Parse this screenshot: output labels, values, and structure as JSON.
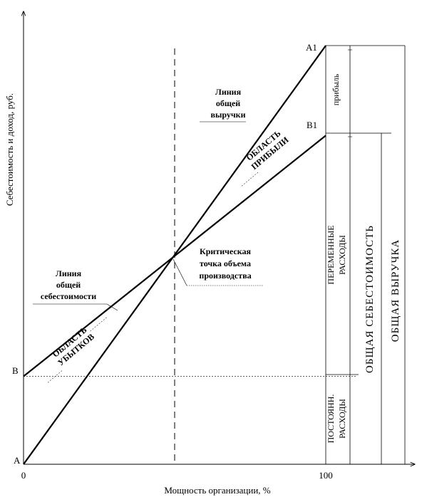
{
  "chart_data": {
    "type": "line",
    "title": "",
    "xlabel": "Мощность организации, %",
    "ylabel": "Себестоимость и доход, руб.",
    "x_ticks": [
      "0",
      "100"
    ],
    "y_point_labels": {
      "a": "A",
      "b": "B",
      "a1": "A1",
      "b1": "B1"
    },
    "series": [
      {
        "key": "revenue",
        "x": [
          0,
          100
        ],
        "y": [
          0,
          100
        ]
      },
      {
        "key": "cost",
        "x": [
          0,
          100
        ],
        "y": [
          21,
          78.5
        ]
      }
    ],
    "critical_x": 50,
    "annotations": {
      "revenue_line": [
        "Линия",
        "общей",
        "выручки"
      ],
      "cost_line": [
        "Линия",
        "общей",
        "себестоимости"
      ],
      "critical_point": [
        "Критическая",
        "точка объема",
        "производства"
      ],
      "profit_area": [
        "ОБЛАСТЬ",
        "ПРИБЫЛИ"
      ],
      "loss_area": [
        "ОБЛАСТЬ",
        "УБЫТКОВ"
      ]
    },
    "brackets": {
      "profit": "прибыль",
      "variable_costs": [
        "ПЕРЕМЕННЫЕ",
        "РАСХОДЫ"
      ],
      "fixed_costs": [
        "ПОСТОЯНН.",
        "РАСХОДЫ"
      ],
      "total_cost": "ОБЩАЯ СЕБЕСТОИМОСТЬ",
      "total_revenue": "ОБЩАЯ ВЫРУЧКА"
    }
  }
}
